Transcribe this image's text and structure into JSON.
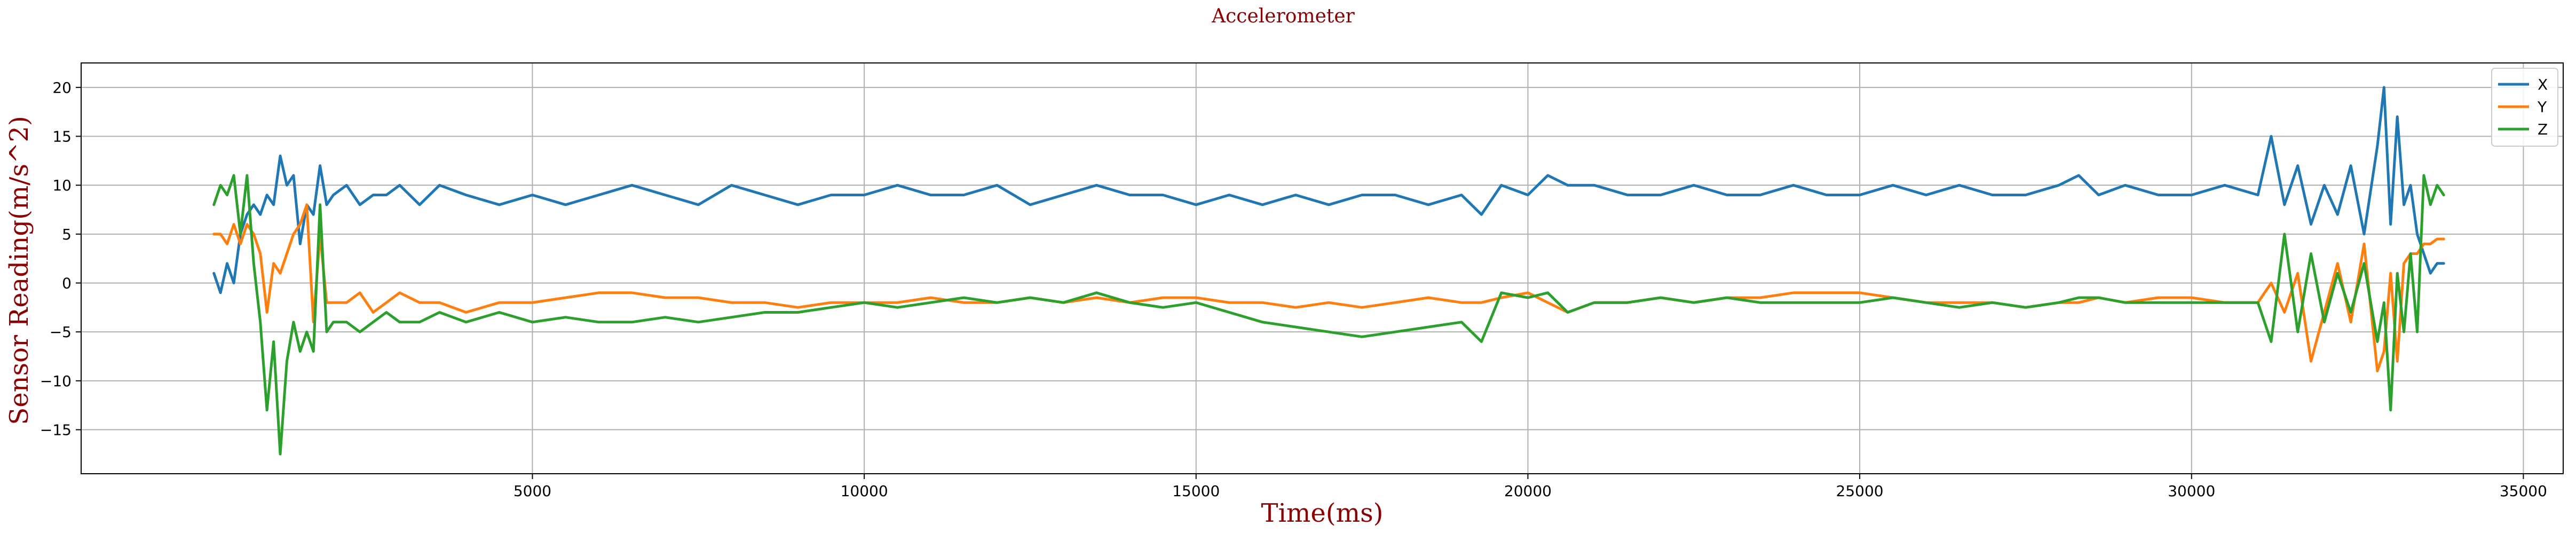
{
  "chart_data": {
    "type": "line",
    "title": "Accelerometer",
    "xlabel": "Time(ms)",
    "ylabel": "Sensor Reading(m/s^2)",
    "xlim": [
      -1800,
      35600
    ],
    "ylim": [
      -19.5,
      22.5
    ],
    "xticks": [
      5000,
      10000,
      15000,
      20000,
      25000,
      30000,
      35000
    ],
    "yticks": [
      -15,
      -10,
      -5,
      0,
      5,
      10,
      15,
      20
    ],
    "grid": true,
    "legend_position": "top-right",
    "title_color": "#8b0000",
    "label_color": "#8b0000",
    "series": [
      {
        "name": "X",
        "color": "#1f77b4",
        "x": [
          200,
          300,
          400,
          500,
          600,
          700,
          800,
          900,
          1000,
          1100,
          1200,
          1300,
          1400,
          1500,
          1600,
          1700,
          1800,
          1900,
          2000,
          2200,
          2400,
          2600,
          2800,
          3000,
          3300,
          3600,
          4000,
          4500,
          5000,
          5500,
          6000,
          6500,
          7000,
          7500,
          8000,
          8500,
          9000,
          9500,
          10000,
          10500,
          11000,
          11500,
          12000,
          12500,
          13000,
          13500,
          14000,
          14500,
          15000,
          15500,
          16000,
          16500,
          17000,
          17500,
          18000,
          18500,
          19000,
          19300,
          19600,
          20000,
          20300,
          20600,
          21000,
          21500,
          22000,
          22500,
          23000,
          23500,
          24000,
          24500,
          25000,
          25500,
          26000,
          26500,
          27000,
          27500,
          28000,
          28300,
          28600,
          29000,
          29500,
          30000,
          30500,
          31000,
          31200,
          31400,
          31600,
          31800,
          32000,
          32200,
          32400,
          32600,
          32800,
          32900,
          33000,
          33100,
          33200,
          33300,
          33400,
          33500,
          33600,
          33700,
          33800
        ],
        "y": [
          1,
          -1,
          2,
          0,
          5,
          7,
          8,
          7,
          9,
          8,
          13,
          10,
          11,
          4,
          8,
          7,
          12,
          8,
          9,
          10,
          8,
          9,
          9,
          10,
          8,
          10,
          9,
          8,
          9,
          8,
          9,
          10,
          9,
          8,
          10,
          9,
          8,
          9,
          9,
          10,
          9,
          9,
          10,
          8,
          9,
          10,
          9,
          9,
          8,
          9,
          8,
          9,
          8,
          9,
          9,
          8,
          9,
          7,
          10,
          9,
          11,
          10,
          10,
          9,
          9,
          10,
          9,
          9,
          10,
          9,
          9,
          10,
          9,
          10,
          9,
          9,
          10,
          11,
          9,
          10,
          9,
          9,
          10,
          9,
          15,
          8,
          12,
          6,
          10,
          7,
          12,
          5,
          14,
          20,
          6,
          17,
          8,
          10,
          5,
          3,
          1,
          2,
          2
        ]
      },
      {
        "name": "Y",
        "color": "#ff7f0e",
        "x": [
          200,
          300,
          400,
          500,
          600,
          700,
          800,
          900,
          1000,
          1100,
          1200,
          1300,
          1400,
          1500,
          1600,
          1700,
          1800,
          1900,
          2000,
          2200,
          2400,
          2600,
          2800,
          3000,
          3300,
          3600,
          4000,
          4500,
          5000,
          5500,
          6000,
          6500,
          7000,
          7500,
          8000,
          8500,
          9000,
          9500,
          10000,
          10500,
          11000,
          11500,
          12000,
          12500,
          13000,
          13500,
          14000,
          14500,
          15000,
          15500,
          16000,
          16500,
          17000,
          17500,
          18000,
          18500,
          19000,
          19300,
          19600,
          20000,
          20300,
          20600,
          21000,
          21500,
          22000,
          22500,
          23000,
          23500,
          24000,
          24500,
          25000,
          25500,
          26000,
          26500,
          27000,
          27500,
          28000,
          28300,
          28600,
          29000,
          29500,
          30000,
          30500,
          31000,
          31200,
          31400,
          31600,
          31800,
          32000,
          32200,
          32400,
          32600,
          32800,
          32900,
          33000,
          33100,
          33200,
          33300,
          33400,
          33500,
          33600,
          33700,
          33800
        ],
        "y": [
          5,
          5,
          4,
          6,
          4,
          6,
          5,
          3,
          -3,
          2,
          1,
          3,
          5,
          6,
          8,
          -4,
          5,
          -2,
          -2,
          -2,
          -1,
          -3,
          -2,
          -1,
          -2,
          -2,
          -3,
          -2,
          -2,
          -1.5,
          -1,
          -1,
          -1.5,
          -1.5,
          -2,
          -2,
          -2.5,
          -2,
          -2,
          -2,
          -1.5,
          -2,
          -2,
          -1.5,
          -2,
          -1.5,
          -2,
          -1.5,
          -1.5,
          -2,
          -2,
          -2.5,
          -2,
          -2.5,
          -2,
          -1.5,
          -2,
          -2,
          -1.5,
          -1,
          -2,
          -3,
          -2,
          -2,
          -1.5,
          -2,
          -1.5,
          -1.5,
          -1,
          -1,
          -1,
          -1.5,
          -2,
          -2,
          -2,
          -2.5,
          -2,
          -2,
          -1.5,
          -2,
          -1.5,
          -1.5,
          -2,
          -2,
          0,
          -3,
          1,
          -8,
          -3,
          2,
          -4,
          4,
          -9,
          -7,
          1,
          -8,
          2,
          3,
          3,
          4,
          4,
          4.5,
          4.5
        ]
      },
      {
        "name": "Z",
        "color": "#2ca02c",
        "x": [
          200,
          300,
          400,
          500,
          600,
          700,
          800,
          900,
          1000,
          1100,
          1200,
          1300,
          1400,
          1500,
          1600,
          1700,
          1800,
          1900,
          2000,
          2200,
          2400,
          2600,
          2800,
          3000,
          3300,
          3600,
          4000,
          4500,
          5000,
          5500,
          6000,
          6500,
          7000,
          7500,
          8000,
          8500,
          9000,
          9500,
          10000,
          10500,
          11000,
          11500,
          12000,
          12500,
          13000,
          13500,
          14000,
          14500,
          15000,
          15500,
          16000,
          16500,
          17000,
          17500,
          18000,
          18500,
          19000,
          19300,
          19600,
          20000,
          20300,
          20600,
          21000,
          21500,
          22000,
          22500,
          23000,
          23500,
          24000,
          24500,
          25000,
          25500,
          26000,
          26500,
          27000,
          27500,
          28000,
          28300,
          28600,
          29000,
          29500,
          30000,
          30500,
          31000,
          31200,
          31400,
          31600,
          31800,
          32000,
          32200,
          32400,
          32600,
          32800,
          32900,
          33000,
          33100,
          33200,
          33300,
          33400,
          33500,
          33600,
          33700,
          33800
        ],
        "y": [
          8,
          10,
          9,
          11,
          5,
          11,
          2,
          -4,
          -13,
          -6,
          -17.5,
          -8,
          -4,
          -7,
          -5,
          -7,
          8,
          -5,
          -4,
          -4,
          -5,
          -4,
          -3,
          -4,
          -4,
          -3,
          -4,
          -3,
          -4,
          -3.5,
          -4,
          -4,
          -3.5,
          -4,
          -3.5,
          -3,
          -3,
          -2.5,
          -2,
          -2.5,
          -2,
          -1.5,
          -2,
          -1.5,
          -2,
          -1,
          -2,
          -2.5,
          -2,
          -3,
          -4,
          -4.5,
          -5,
          -5.5,
          -5,
          -4.5,
          -4,
          -6,
          -1,
          -1.5,
          -1,
          -3,
          -2,
          -2,
          -1.5,
          -2,
          -1.5,
          -2,
          -2,
          -2,
          -2,
          -1.5,
          -2,
          -2.5,
          -2,
          -2.5,
          -2,
          -1.5,
          -1.5,
          -2,
          -2,
          -2,
          -2,
          -2,
          -6,
          5,
          -5,
          3,
          -4,
          1,
          -3,
          2,
          -6,
          -2,
          -13,
          1,
          -5,
          3,
          -5,
          11,
          8,
          10,
          9
        ]
      }
    ]
  }
}
